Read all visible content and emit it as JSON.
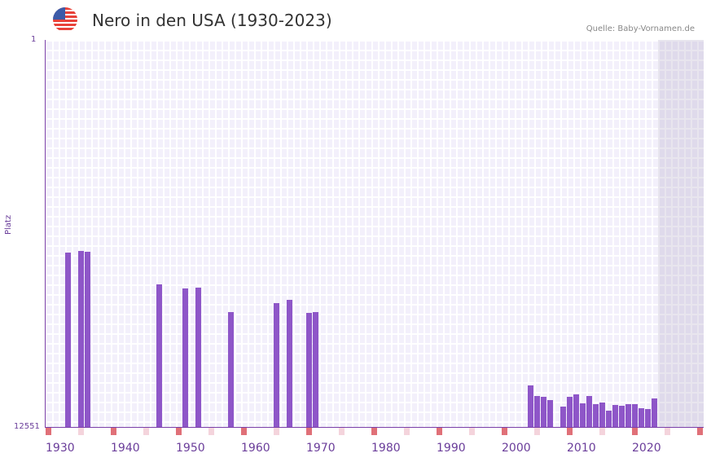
{
  "header": {
    "title": "Nero in den USA (1930-2023)",
    "source": "Quelle: Baby-Vornamen.de",
    "flag": "us-flag-icon"
  },
  "colors": {
    "bar": "#8e56c8",
    "axis": "#7a3fa8",
    "decade_marker": "#e07078",
    "half_decade_marker": "#f4d4dc",
    "grid_bg": "#f3f0fb"
  },
  "chart_data": {
    "type": "bar",
    "title": "Nero in den USA (1930-2023)",
    "xlabel": "",
    "ylabel": "Platz",
    "ylim": [
      12551,
      1
    ],
    "y_ticks": [
      "1",
      "12551"
    ],
    "x_ticks": [
      "1930",
      "1940",
      "1950",
      "1960",
      "1970",
      "1980",
      "1990",
      "2000",
      "2010",
      "2020"
    ],
    "grid": true,
    "x": [
      1931,
      1933,
      1934,
      1945,
      1949,
      1951,
      1956,
      1963,
      1965,
      1968,
      1969,
      2002,
      2003,
      2004,
      2005,
      2007,
      2008,
      2009,
      2010,
      2011,
      2012,
      2013,
      2014,
      2015,
      2016,
      2017,
      2018,
      2019,
      2020,
      2021
    ],
    "values": [
      6897,
      6844,
      6870,
      7927,
      8059,
      8033,
      8826,
      8535,
      8429,
      8852,
      8826,
      11203,
      11547,
      11573,
      11679,
      11890,
      11573,
      11494,
      11785,
      11547,
      11811,
      11758,
      12022,
      11837,
      11864,
      11811,
      11811,
      11943,
      11969,
      11626
    ]
  }
}
